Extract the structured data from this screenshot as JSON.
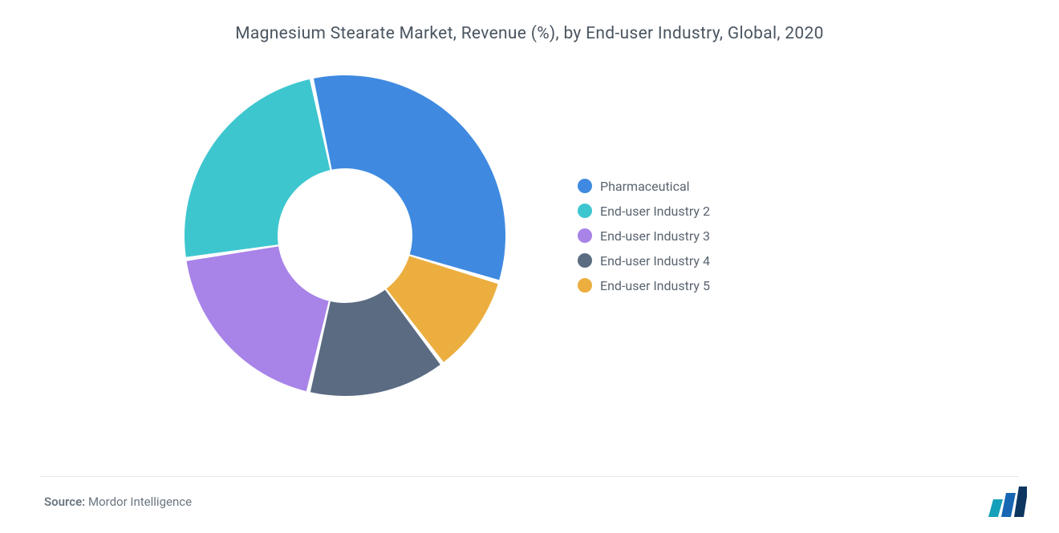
{
  "chart": {
    "type": "donut",
    "title": "Magnesium Stearate Market, Revenue (%), by End-user Industry, Global, 2020",
    "title_fontsize": 21,
    "title_color": "#4a5560",
    "background_color": "#ffffff",
    "inner_radius_ratio": 0.42,
    "slice_gap_deg": 1.5,
    "start_angle_deg": -12,
    "slices": [
      {
        "label": "Pharmaceutical",
        "value": 33,
        "color": "#3f8ae0"
      },
      {
        "label": "End-user Industry 5",
        "value": 10,
        "color": "#ecae3f"
      },
      {
        "label": "End-user Industry 4",
        "value": 14,
        "color": "#5a6b82"
      },
      {
        "label": "End-user Industry 3",
        "value": 19,
        "color": "#a883e8"
      },
      {
        "label": "End-user Industry 2",
        "value": 24,
        "color": "#3ec6cf"
      }
    ],
    "legend_order": [
      {
        "label": "Pharmaceutical",
        "color": "#3f8ae0"
      },
      {
        "label": "End-user Industry 2",
        "color": "#3ec6cf"
      },
      {
        "label": "End-user Industry 3",
        "color": "#a883e8"
      },
      {
        "label": "End-user Industry 4",
        "color": "#5a6b82"
      },
      {
        "label": "End-user Industry 5",
        "color": "#ecae3f"
      }
    ],
    "legend_fontsize": 16,
    "legend_text_color": "#5a6470"
  },
  "source": {
    "label": "Source:",
    "value": "Mordor Intelligence",
    "fontsize": 15,
    "color": "#6b7680"
  },
  "logo": {
    "bar1_color": "#14a0b8",
    "bar2_color": "#1766b3",
    "bar3_color": "#0d3560"
  }
}
